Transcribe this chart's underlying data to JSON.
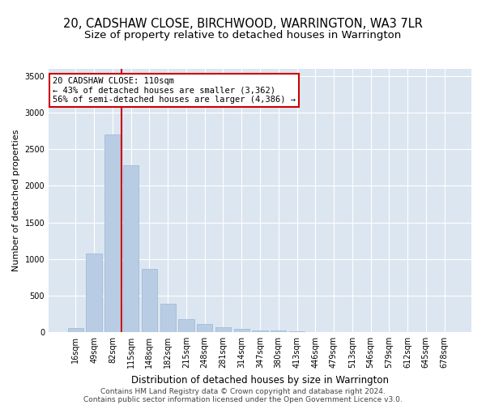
{
  "title": "20, CADSHAW CLOSE, BIRCHWOOD, WARRINGTON, WA3 7LR",
  "subtitle": "Size of property relative to detached houses in Warrington",
  "xlabel": "Distribution of detached houses by size in Warrington",
  "ylabel": "Number of detached properties",
  "categories": [
    "16sqm",
    "49sqm",
    "82sqm",
    "115sqm",
    "148sqm",
    "182sqm",
    "215sqm",
    "248sqm",
    "281sqm",
    "314sqm",
    "347sqm",
    "380sqm",
    "413sqm",
    "446sqm",
    "479sqm",
    "513sqm",
    "546sqm",
    "579sqm",
    "612sqm",
    "645sqm",
    "678sqm"
  ],
  "values": [
    50,
    1080,
    2700,
    2280,
    860,
    390,
    175,
    110,
    65,
    45,
    25,
    18,
    10,
    4,
    2,
    1,
    1,
    0,
    0,
    0,
    0
  ],
  "bar_color": "#b8cce4",
  "bar_edge_color": "#9ab6d4",
  "vline_x_index": 2.5,
  "annotation_text": "20 CADSHAW CLOSE: 110sqm\n← 43% of detached houses are smaller (3,362)\n56% of semi-detached houses are larger (4,386) →",
  "annotation_box_color": "#ffffff",
  "annotation_box_edge_color": "#cc0000",
  "vline_color": "#cc0000",
  "ylim": [
    0,
    3600
  ],
  "yticks": [
    0,
    500,
    1000,
    1500,
    2000,
    2500,
    3000,
    3500
  ],
  "background_color": "#dce6f1",
  "footer_line1": "Contains HM Land Registry data © Crown copyright and database right 2024.",
  "footer_line2": "Contains public sector information licensed under the Open Government Licence v3.0.",
  "title_fontsize": 10.5,
  "subtitle_fontsize": 9.5,
  "xlabel_fontsize": 8.5,
  "ylabel_fontsize": 8,
  "tick_fontsize": 7,
  "footer_fontsize": 6.5,
  "annotation_fontsize": 7.5
}
